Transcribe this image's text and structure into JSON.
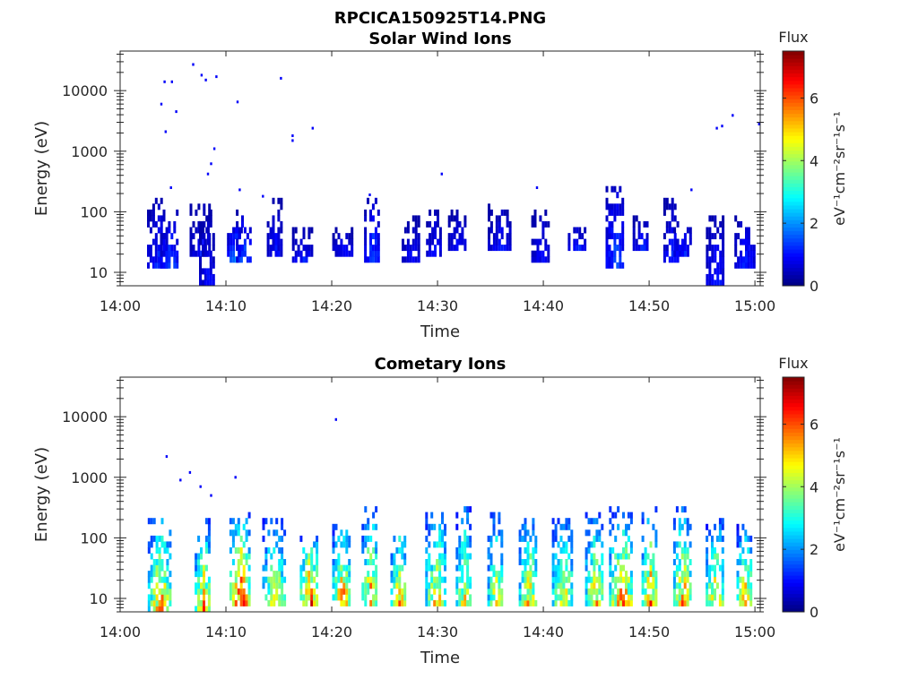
{
  "figure": {
    "filename": "RPCICA150925T14.PNG"
  },
  "chart_data": [
    {
      "type": "heatmap",
      "title": "Solar Wind Ions",
      "xlabel": "Time",
      "ylabel": "Energy (eV)",
      "yscale": "log",
      "xlim": [
        "14:00",
        "15:00"
      ],
      "ylim": [
        6,
        45000
      ],
      "x_ticks": [
        "14:00",
        "14:10",
        "14:20",
        "14:30",
        "14:40",
        "14:50",
        "15:00"
      ],
      "y_ticks": [
        "10",
        "100",
        "1000",
        "10000"
      ],
      "colorbar": {
        "label": "Flux",
        "unit": "eV⁻¹cm⁻²sr⁻¹s⁻¹",
        "range": [
          0,
          7.5
        ],
        "ticks": [
          "0",
          "2",
          "4",
          "6"
        ],
        "colormap": "jet"
      },
      "bursts": [
        {
          "t": 3.5,
          "emin": 12,
          "emax": 160,
          "peak": 1.2
        },
        {
          "t": 4.6,
          "emin": 12,
          "emax": 100,
          "peak": 1.5
        },
        {
          "t": 7.6,
          "emin": 20,
          "emax": 150,
          "peak": 1.0
        },
        {
          "t": 8.2,
          "emin": 6,
          "emax": 100,
          "peak": 1.0
        },
        {
          "t": 10.8,
          "emin": 14,
          "emax": 60,
          "peak": 2.0
        },
        {
          "t": 11.7,
          "emin": 14,
          "emax": 120,
          "peak": 1.5
        },
        {
          "t": 14.6,
          "emin": 20,
          "emax": 160,
          "peak": 1.0
        },
        {
          "t": 17.3,
          "emin": 15,
          "emax": 50,
          "peak": 1.2
        },
        {
          "t": 21.0,
          "emin": 20,
          "emax": 60,
          "peak": 1.0
        },
        {
          "t": 23.8,
          "emin": 15,
          "emax": 170,
          "peak": 1.5
        },
        {
          "t": 27.5,
          "emin": 15,
          "emax": 80,
          "peak": 1.0
        },
        {
          "t": 29.7,
          "emin": 20,
          "emax": 120,
          "peak": 1.0
        },
        {
          "t": 31.9,
          "emin": 25,
          "emax": 100,
          "peak": 1.0
        },
        {
          "t": 35.8,
          "emin": 25,
          "emax": 140,
          "peak": 1.0
        },
        {
          "t": 39.7,
          "emin": 15,
          "emax": 100,
          "peak": 1.0
        },
        {
          "t": 43.2,
          "emin": 25,
          "emax": 60,
          "peak": 1.2
        },
        {
          "t": 46.8,
          "emin": 12,
          "emax": 250,
          "peak": 1.6
        },
        {
          "t": 49.2,
          "emin": 25,
          "emax": 80,
          "peak": 1.2
        },
        {
          "t": 52.1,
          "emin": 15,
          "emax": 170,
          "peak": 1.2
        },
        {
          "t": 53.2,
          "emin": 20,
          "emax": 60,
          "peak": 1.2
        },
        {
          "t": 56.2,
          "emin": 6,
          "emax": 90,
          "peak": 1.2
        },
        {
          "t": 59.0,
          "emin": 12,
          "emax": 90,
          "peak": 1.2
        }
      ],
      "scatter": [
        {
          "t": 3.8,
          "e": 6000
        },
        {
          "t": 4.2,
          "e": 2100
        },
        {
          "t": 4.1,
          "e": 14000
        },
        {
          "t": 4.8,
          "e": 14000
        },
        {
          "t": 5.2,
          "e": 4500
        },
        {
          "t": 6.8,
          "e": 27000
        },
        {
          "t": 7.6,
          "e": 18000
        },
        {
          "t": 8.0,
          "e": 15000
        },
        {
          "t": 9.0,
          "e": 17000
        },
        {
          "t": 8.8,
          "e": 1100
        },
        {
          "t": 8.5,
          "e": 620
        },
        {
          "t": 8.2,
          "e": 420
        },
        {
          "t": 11.0,
          "e": 6500
        },
        {
          "t": 15.1,
          "e": 16000
        },
        {
          "t": 16.2,
          "e": 1800
        },
        {
          "t": 16.2,
          "e": 1500
        },
        {
          "t": 18.1,
          "e": 2400
        },
        {
          "t": 30.3,
          "e": 420
        },
        {
          "t": 39.3,
          "e": 250
        },
        {
          "t": 53.9,
          "e": 230
        },
        {
          "t": 56.3,
          "e": 2400
        },
        {
          "t": 56.8,
          "e": 2600
        },
        {
          "t": 57.8,
          "e": 3900
        },
        {
          "t": 60.3,
          "e": 2800
        },
        {
          "t": 4.7,
          "e": 250
        },
        {
          "t": 11.2,
          "e": 230
        },
        {
          "t": 13.4,
          "e": 180
        },
        {
          "t": 23.5,
          "e": 190
        }
      ]
    },
    {
      "type": "heatmap",
      "title": "Cometary Ions",
      "xlabel": "Time",
      "ylabel": "Energy (eV)",
      "yscale": "log",
      "xlim": [
        "14:00",
        "15:00"
      ],
      "ylim": [
        6,
        45000
      ],
      "x_ticks": [
        "14:00",
        "14:10",
        "14:20",
        "14:30",
        "14:40",
        "14:50",
        "15:00"
      ],
      "y_ticks": [
        "10",
        "100",
        "1000",
        "10000"
      ],
      "colorbar": {
        "label": "Flux",
        "unit": "eV⁻¹cm⁻²sr⁻¹s⁻¹",
        "range": [
          0,
          7.5
        ],
        "ticks": [
          "0",
          "2",
          "4",
          "6"
        ],
        "colormap": "jet"
      },
      "bursts": [
        {
          "t": 3.7,
          "emin": 6,
          "emax": 200,
          "peak": 5.6
        },
        {
          "t": 7.8,
          "emin": 6,
          "emax": 220,
          "peak": 5.4
        },
        {
          "t": 11.3,
          "emin": 7,
          "emax": 240,
          "peak": 6.5
        },
        {
          "t": 14.5,
          "emin": 7,
          "emax": 200,
          "peak": 5.0
        },
        {
          "t": 17.8,
          "emin": 8,
          "emax": 140,
          "peak": 6.2
        },
        {
          "t": 20.9,
          "emin": 8,
          "emax": 180,
          "peak": 5.8
        },
        {
          "t": 23.6,
          "emin": 7,
          "emax": 320,
          "peak": 5.6
        },
        {
          "t": 26.3,
          "emin": 7,
          "emax": 180,
          "peak": 5.4
        },
        {
          "t": 29.8,
          "emin": 8,
          "emax": 320,
          "peak": 5.2
        },
        {
          "t": 32.5,
          "emin": 8,
          "emax": 300,
          "peak": 5.0
        },
        {
          "t": 35.5,
          "emin": 8,
          "emax": 260,
          "peak": 5.0
        },
        {
          "t": 38.5,
          "emin": 8,
          "emax": 220,
          "peak": 5.2
        },
        {
          "t": 41.8,
          "emin": 8,
          "emax": 220,
          "peak": 5.0
        },
        {
          "t": 44.8,
          "emin": 8,
          "emax": 260,
          "peak": 5.2
        },
        {
          "t": 47.3,
          "emin": 8,
          "emax": 300,
          "peak": 5.8
        },
        {
          "t": 50.0,
          "emin": 8,
          "emax": 360,
          "peak": 5.6
        },
        {
          "t": 53.2,
          "emin": 8,
          "emax": 320,
          "peak": 5.6
        },
        {
          "t": 56.2,
          "emin": 8,
          "emax": 200,
          "peak": 5.4
        },
        {
          "t": 59.0,
          "emin": 8,
          "emax": 160,
          "peak": 5.4
        }
      ],
      "scatter": [
        {
          "t": 4.3,
          "e": 2200
        },
        {
          "t": 5.6,
          "e": 900
        },
        {
          "t": 6.5,
          "e": 1200
        },
        {
          "t": 7.5,
          "e": 700
        },
        {
          "t": 10.8,
          "e": 1000
        },
        {
          "t": 20.3,
          "e": 9000
        },
        {
          "t": 8.5,
          "e": 500
        }
      ]
    }
  ]
}
